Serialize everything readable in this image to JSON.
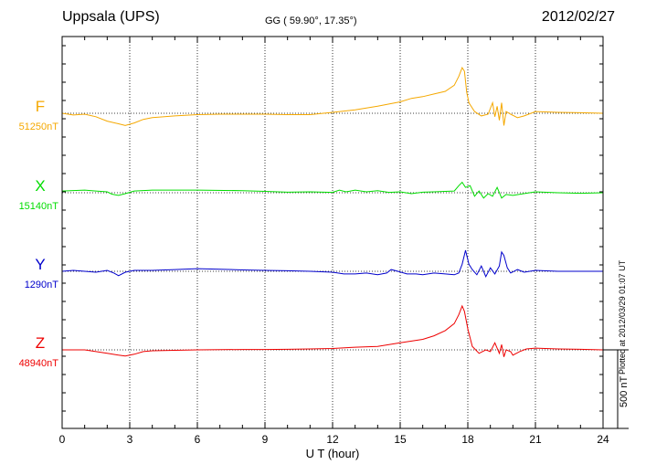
{
  "header": {
    "station": "Uppsala (UPS)",
    "coords": "GG ( 59.90°,  17.35°)",
    "date": "2012/02/27"
  },
  "plotted_note": "Plotted at 2012/03/29 01:07 UT",
  "scale_label": "500 nT",
  "chart_data": {
    "type": "line",
    "xlabel": "U T (hour)",
    "xlim": [
      0,
      24
    ],
    "xticks": [
      0,
      3,
      6,
      9,
      12,
      15,
      18,
      21,
      24
    ],
    "scale_bar_nT": 500,
    "series": [
      {
        "name": "F",
        "baseline_label": "51250nT",
        "color": "#f5a800",
        "points": [
          [
            0,
            0
          ],
          [
            0.5,
            -10
          ],
          [
            1,
            -5
          ],
          [
            1.5,
            -20
          ],
          [
            2,
            -45
          ],
          [
            2.5,
            -60
          ],
          [
            2.8,
            -70
          ],
          [
            3.2,
            -55
          ],
          [
            3.6,
            -35
          ],
          [
            4,
            -25
          ],
          [
            5,
            -15
          ],
          [
            6,
            -8
          ],
          [
            7,
            -5
          ],
          [
            8,
            -5
          ],
          [
            9,
            -5
          ],
          [
            10,
            -8
          ],
          [
            11,
            -8
          ],
          [
            12,
            5
          ],
          [
            13,
            20
          ],
          [
            14,
            40
          ],
          [
            15,
            65
          ],
          [
            15.5,
            85
          ],
          [
            16,
            95
          ],
          [
            16.5,
            110
          ],
          [
            17,
            125
          ],
          [
            17.4,
            160
          ],
          [
            17.6,
            210
          ],
          [
            17.75,
            260
          ],
          [
            17.85,
            240
          ],
          [
            17.95,
            120
          ],
          [
            18.05,
            60
          ],
          [
            18.3,
            10
          ],
          [
            18.6,
            -15
          ],
          [
            18.9,
            -5
          ],
          [
            19.1,
            60
          ],
          [
            19.2,
            -20
          ],
          [
            19.3,
            40
          ],
          [
            19.4,
            -40
          ],
          [
            19.5,
            60
          ],
          [
            19.6,
            -70
          ],
          [
            19.7,
            10
          ],
          [
            19.9,
            -5
          ],
          [
            20.2,
            -25
          ],
          [
            20.5,
            -15
          ],
          [
            21,
            10
          ],
          [
            22,
            5
          ],
          [
            23,
            3
          ],
          [
            24,
            0
          ]
        ]
      },
      {
        "name": "X",
        "baseline_label": "15140nT",
        "color": "#00dd00",
        "points": [
          [
            0,
            10
          ],
          [
            1,
            15
          ],
          [
            1.5,
            10
          ],
          [
            2,
            5
          ],
          [
            2.2,
            -8
          ],
          [
            2.5,
            -15
          ],
          [
            2.8,
            -5
          ],
          [
            3.2,
            10
          ],
          [
            4,
            15
          ],
          [
            6,
            15
          ],
          [
            8,
            12
          ],
          [
            9,
            8
          ],
          [
            10,
            3
          ],
          [
            11,
            5
          ],
          [
            12,
            2
          ],
          [
            12.3,
            15
          ],
          [
            12.6,
            5
          ],
          [
            13,
            15
          ],
          [
            13.5,
            5
          ],
          [
            14,
            12
          ],
          [
            14.5,
            2
          ],
          [
            15,
            5
          ],
          [
            15.5,
            -5
          ],
          [
            16,
            3
          ],
          [
            16.5,
            5
          ],
          [
            17,
            8
          ],
          [
            17.4,
            10
          ],
          [
            17.6,
            40
          ],
          [
            17.75,
            60
          ],
          [
            17.9,
            30
          ],
          [
            18.1,
            40
          ],
          [
            18.3,
            -20
          ],
          [
            18.5,
            10
          ],
          [
            18.7,
            -30
          ],
          [
            18.9,
            -5
          ],
          [
            19.1,
            -20
          ],
          [
            19.3,
            30
          ],
          [
            19.5,
            -30
          ],
          [
            19.7,
            -10
          ],
          [
            20,
            -15
          ],
          [
            21,
            5
          ],
          [
            22,
            0
          ],
          [
            23,
            -3
          ],
          [
            24,
            0
          ]
        ]
      },
      {
        "name": "Y",
        "baseline_label": "1290nT",
        "color": "#0000cc",
        "points": [
          [
            0,
            0
          ],
          [
            0.5,
            5
          ],
          [
            1,
            0
          ],
          [
            1.5,
            -5
          ],
          [
            2,
            5
          ],
          [
            2.3,
            -10
          ],
          [
            2.5,
            -25
          ],
          [
            2.8,
            -5
          ],
          [
            3.2,
            5
          ],
          [
            4,
            5
          ],
          [
            5,
            10
          ],
          [
            6,
            15
          ],
          [
            7,
            12
          ],
          [
            8,
            8
          ],
          [
            9,
            5
          ],
          [
            10,
            3
          ],
          [
            11,
            0
          ],
          [
            12,
            -5
          ],
          [
            12.5,
            -15
          ],
          [
            13,
            -15
          ],
          [
            13.5,
            -10
          ],
          [
            14,
            -20
          ],
          [
            14.4,
            -10
          ],
          [
            14.6,
            10
          ],
          [
            14.9,
            0
          ],
          [
            15.3,
            -15
          ],
          [
            15.7,
            -15
          ],
          [
            16,
            -20
          ],
          [
            16.5,
            -10
          ],
          [
            17,
            -15
          ],
          [
            17.4,
            -20
          ],
          [
            17.6,
            -10
          ],
          [
            17.75,
            40
          ],
          [
            17.9,
            120
          ],
          [
            18.05,
            40
          ],
          [
            18.2,
            10
          ],
          [
            18.4,
            -20
          ],
          [
            18.6,
            30
          ],
          [
            18.8,
            -30
          ],
          [
            19,
            20
          ],
          [
            19.2,
            -15
          ],
          [
            19.4,
            30
          ],
          [
            19.5,
            110
          ],
          [
            19.6,
            90
          ],
          [
            19.75,
            20
          ],
          [
            19.9,
            -10
          ],
          [
            20.2,
            10
          ],
          [
            20.5,
            -5
          ],
          [
            21,
            5
          ],
          [
            22,
            0
          ],
          [
            23,
            0
          ],
          [
            24,
            0
          ]
        ]
      },
      {
        "name": "Z",
        "baseline_label": "48940nT",
        "color": "#ee0000",
        "points": [
          [
            0,
            0
          ],
          [
            1,
            0
          ],
          [
            1.5,
            -10
          ],
          [
            2,
            -20
          ],
          [
            2.5,
            -30
          ],
          [
            2.8,
            -35
          ],
          [
            3.2,
            -25
          ],
          [
            3.6,
            -10
          ],
          [
            4,
            -5
          ],
          [
            6,
            0
          ],
          [
            8,
            2
          ],
          [
            9,
            2
          ],
          [
            10,
            3
          ],
          [
            11,
            5
          ],
          [
            12,
            8
          ],
          [
            13,
            15
          ],
          [
            14,
            20
          ],
          [
            15,
            40
          ],
          [
            16,
            60
          ],
          [
            16.5,
            80
          ],
          [
            17,
            110
          ],
          [
            17.4,
            150
          ],
          [
            17.6,
            200
          ],
          [
            17.75,
            250
          ],
          [
            17.85,
            220
          ],
          [
            18,
            120
          ],
          [
            18.2,
            20
          ],
          [
            18.5,
            -20
          ],
          [
            18.8,
            0
          ],
          [
            19,
            -10
          ],
          [
            19.2,
            40
          ],
          [
            19.4,
            -20
          ],
          [
            19.5,
            30
          ],
          [
            19.6,
            -40
          ],
          [
            19.7,
            0
          ],
          [
            19.9,
            -10
          ],
          [
            20,
            -30
          ],
          [
            20.3,
            -10
          ],
          [
            20.6,
            5
          ],
          [
            21,
            10
          ],
          [
            22,
            5
          ],
          [
            23,
            3
          ],
          [
            24,
            0
          ]
        ]
      }
    ]
  }
}
